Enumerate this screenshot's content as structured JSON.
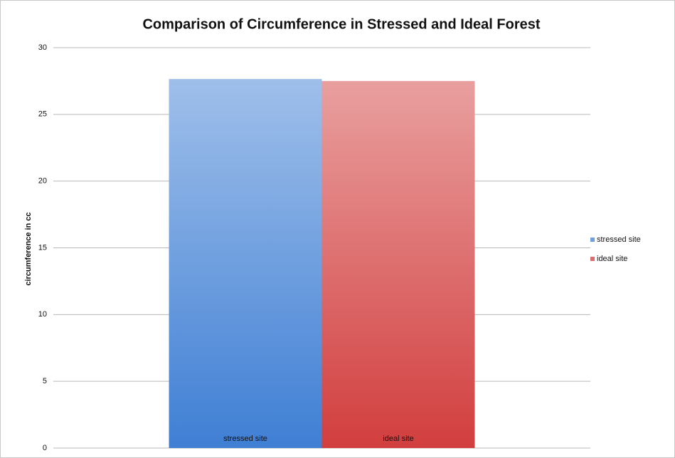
{
  "chart_data": {
    "type": "bar",
    "title": "Comparison of Circumference in Stressed and Ideal Forest",
    "y_label": "circumference in cc",
    "categories": [
      "stressed site",
      "ideal site"
    ],
    "values": [
      27.65,
      27.5
    ],
    "colors": [
      "#3f7fd4",
      "#d23e3e"
    ],
    "ylim": [
      0,
      30
    ],
    "yticks": [
      0,
      5,
      10,
      15,
      20,
      25,
      30
    ],
    "grid": true,
    "legend": "right"
  }
}
